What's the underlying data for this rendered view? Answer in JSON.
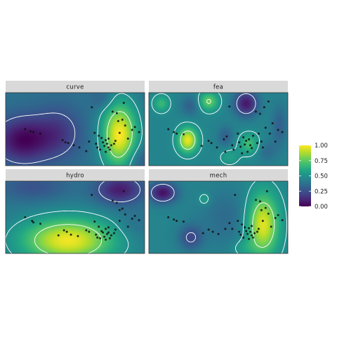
{
  "chart_data": {
    "type": "heatmap",
    "facets": [
      "curve",
      "fea",
      "hydro",
      "mech"
    ],
    "legend": {
      "ticks": [
        1.0,
        0.75,
        0.5,
        0.25,
        0.0
      ],
      "tick_labels": [
        "1.00",
        "0.75",
        "0.50",
        "0.25",
        "0.00"
      ],
      "range": [
        0,
        1
      ],
      "colormap": "viridis",
      "placement": "right"
    },
    "contour_levels": [
      0.25,
      0.5,
      0.75
    ],
    "xlim": [
      0,
      1
    ],
    "ylim": [
      0,
      1
    ],
    "grid": false,
    "surfaces": {
      "curve": {
        "base": 0.38,
        "bumps": [
          {
            "x": 0.82,
            "y": 0.42,
            "sx": 0.09,
            "sy": 0.32,
            "a": 0.62
          },
          {
            "x": 0.12,
            "y": 0.35,
            "sx": 0.14,
            "sy": 0.22,
            "a": -0.36
          },
          {
            "x": 0.38,
            "y": 0.45,
            "sx": 0.12,
            "sy": 0.25,
            "a": -0.2
          },
          {
            "x": 0.7,
            "y": 0.9,
            "sx": 0.06,
            "sy": 0.1,
            "a": -0.1
          },
          {
            "x": 0.96,
            "y": 0.08,
            "sx": 0.08,
            "sy": 0.14,
            "a": -0.12
          }
        ]
      },
      "fea": {
        "base": 0.45,
        "bumps": [
          {
            "x": 0.28,
            "y": 0.35,
            "sx": 0.05,
            "sy": 0.12,
            "a": 0.52
          },
          {
            "x": 0.43,
            "y": 0.88,
            "sx": 0.05,
            "sy": 0.09,
            "a": 0.32
          },
          {
            "x": 0.7,
            "y": 0.85,
            "sx": 0.06,
            "sy": 0.12,
            "a": -0.38
          },
          {
            "x": 0.72,
            "y": 0.3,
            "sx": 0.05,
            "sy": 0.1,
            "a": 0.24
          },
          {
            "x": 0.09,
            "y": 0.85,
            "sx": 0.04,
            "sy": 0.08,
            "a": 0.22
          },
          {
            "x": 0.55,
            "y": 0.4,
            "sx": 0.04,
            "sy": 0.1,
            "a": -0.14
          },
          {
            "x": 0.3,
            "y": 0.82,
            "sx": 0.05,
            "sy": 0.1,
            "a": -0.14
          },
          {
            "x": 0.94,
            "y": 0.55,
            "sx": 0.04,
            "sy": 0.2,
            "a": -0.14
          },
          {
            "x": 0.85,
            "y": 0.2,
            "sx": 0.05,
            "sy": 0.1,
            "a": -0.1
          },
          {
            "x": 0.58,
            "y": 0.12,
            "sx": 0.05,
            "sy": 0.08,
            "a": 0.12
          }
        ]
      },
      "hydro": {
        "base": 0.4,
        "bumps": [
          {
            "x": 0.45,
            "y": 0.18,
            "sx": 0.24,
            "sy": 0.22,
            "a": 0.58
          },
          {
            "x": 0.82,
            "y": 0.88,
            "sx": 0.12,
            "sy": 0.14,
            "a": -0.32
          },
          {
            "x": 0.2,
            "y": 0.92,
            "sx": 0.18,
            "sy": 0.14,
            "a": -0.14
          },
          {
            "x": 0.92,
            "y": 0.38,
            "sx": 0.1,
            "sy": 0.14,
            "a": -0.06
          }
        ]
      },
      "mech": {
        "base": 0.45,
        "bumps": [
          {
            "x": 0.82,
            "y": 0.4,
            "sx": 0.08,
            "sy": 0.3,
            "a": 0.52
          },
          {
            "x": 0.1,
            "y": 0.84,
            "sx": 0.07,
            "sy": 0.1,
            "a": -0.4
          },
          {
            "x": 0.3,
            "y": 0.22,
            "sx": 0.06,
            "sy": 0.12,
            "a": -0.22
          },
          {
            "x": 0.56,
            "y": 0.5,
            "sx": 0.14,
            "sy": 0.28,
            "a": -0.1
          },
          {
            "x": 0.4,
            "y": 0.75,
            "sx": 0.03,
            "sy": 0.06,
            "a": 0.14
          },
          {
            "x": 0.68,
            "y": 0.08,
            "sx": 0.06,
            "sy": 0.08,
            "a": 0.1
          }
        ]
      }
    },
    "points": {
      "curve": [
        [
          0.14,
          0.5
        ],
        [
          0.18,
          0.47
        ],
        [
          0.2,
          0.46
        ],
        [
          0.25,
          0.44
        ],
        [
          0.41,
          0.35
        ],
        [
          0.43,
          0.32
        ],
        [
          0.45,
          0.31
        ],
        [
          0.49,
          0.28
        ],
        [
          0.53,
          0.25
        ],
        [
          0.58,
          0.2
        ],
        [
          0.6,
          0.33
        ],
        [
          0.62,
          0.8
        ],
        [
          0.64,
          0.45
        ],
        [
          0.65,
          0.3
        ],
        [
          0.66,
          0.25
        ],
        [
          0.67,
          0.41
        ],
        [
          0.68,
          0.22
        ],
        [
          0.69,
          0.38
        ],
        [
          0.7,
          0.32
        ],
        [
          0.71,
          0.27
        ],
        [
          0.72,
          0.35
        ],
        [
          0.72,
          0.19
        ],
        [
          0.73,
          0.3
        ],
        [
          0.74,
          0.25
        ],
        [
          0.74,
          0.37
        ],
        [
          0.75,
          0.22
        ],
        [
          0.76,
          0.28
        ],
        [
          0.77,
          0.74
        ],
        [
          0.78,
          0.3
        ],
        [
          0.79,
          0.34
        ],
        [
          0.8,
          0.72
        ],
        [
          0.81,
          0.61
        ],
        [
          0.82,
          0.45
        ],
        [
          0.84,
          0.63
        ],
        [
          0.85,
          0.86
        ],
        [
          0.86,
          0.55
        ],
        [
          0.88,
          0.37
        ],
        [
          0.91,
          0.49
        ],
        [
          0.93,
          0.53
        ],
        [
          0.96,
          0.46
        ]
      ],
      "fea": [
        [
          0.14,
          0.5
        ],
        [
          0.18,
          0.46
        ],
        [
          0.2,
          0.44
        ],
        [
          0.25,
          0.43
        ],
        [
          0.38,
          0.27
        ],
        [
          0.43,
          0.34
        ],
        [
          0.45,
          0.31
        ],
        [
          0.49,
          0.25
        ],
        [
          0.54,
          0.36
        ],
        [
          0.55,
          0.19
        ],
        [
          0.56,
          0.4
        ],
        [
          0.58,
          0.81
        ],
        [
          0.6,
          0.28
        ],
        [
          0.61,
          0.22
        ],
        [
          0.64,
          0.44
        ],
        [
          0.65,
          0.32
        ],
        [
          0.66,
          0.26
        ],
        [
          0.67,
          0.17
        ],
        [
          0.68,
          0.39
        ],
        [
          0.69,
          0.29
        ],
        [
          0.7,
          0.34
        ],
        [
          0.71,
          0.19
        ],
        [
          0.72,
          0.36
        ],
        [
          0.73,
          0.28
        ],
        [
          0.74,
          0.24
        ],
        [
          0.75,
          0.41
        ],
        [
          0.77,
          0.74
        ],
        [
          0.78,
          0.31
        ],
        [
          0.79,
          0.44
        ],
        [
          0.8,
          0.71
        ],
        [
          0.81,
          0.33
        ],
        [
          0.82,
          0.25
        ],
        [
          0.83,
          0.8
        ],
        [
          0.84,
          0.52
        ],
        [
          0.86,
          0.88
        ],
        [
          0.87,
          0.44
        ],
        [
          0.89,
          0.58
        ],
        [
          0.91,
          0.33
        ],
        [
          0.93,
          0.49
        ],
        [
          0.96,
          0.46
        ]
      ],
      "hydro": [
        [
          0.14,
          0.5
        ],
        [
          0.19,
          0.45
        ],
        [
          0.2,
          0.43
        ],
        [
          0.25,
          0.41
        ],
        [
          0.38,
          0.25
        ],
        [
          0.42,
          0.32
        ],
        [
          0.44,
          0.3
        ],
        [
          0.47,
          0.26
        ],
        [
          0.52,
          0.24
        ],
        [
          0.58,
          0.32
        ],
        [
          0.6,
          0.3
        ],
        [
          0.62,
          0.81
        ],
        [
          0.64,
          0.44
        ],
        [
          0.65,
          0.26
        ],
        [
          0.66,
          0.22
        ],
        [
          0.67,
          0.37
        ],
        [
          0.68,
          0.21
        ],
        [
          0.69,
          0.31
        ],
        [
          0.7,
          0.29
        ],
        [
          0.71,
          0.23
        ],
        [
          0.72,
          0.34
        ],
        [
          0.72,
          0.19
        ],
        [
          0.73,
          0.27
        ],
        [
          0.74,
          0.29
        ],
        [
          0.74,
          0.36
        ],
        [
          0.75,
          0.21
        ],
        [
          0.76,
          0.25
        ],
        [
          0.77,
          0.73
        ],
        [
          0.78,
          0.28
        ],
        [
          0.79,
          0.33
        ],
        [
          0.8,
          0.7
        ],
        [
          0.82,
          0.6
        ],
        [
          0.82,
          0.45
        ],
        [
          0.84,
          0.62
        ],
        [
          0.85,
          0.86
        ],
        [
          0.86,
          0.54
        ],
        [
          0.88,
          0.37
        ],
        [
          0.91,
          0.48
        ],
        [
          0.93,
          0.52
        ],
        [
          0.96,
          0.46
        ]
      ],
      "mech": [
        [
          0.14,
          0.5
        ],
        [
          0.18,
          0.47
        ],
        [
          0.2,
          0.45
        ],
        [
          0.25,
          0.44
        ],
        [
          0.39,
          0.28
        ],
        [
          0.43,
          0.33
        ],
        [
          0.46,
          0.3
        ],
        [
          0.5,
          0.27
        ],
        [
          0.55,
          0.34
        ],
        [
          0.58,
          0.42
        ],
        [
          0.6,
          0.34
        ],
        [
          0.62,
          0.81
        ],
        [
          0.64,
          0.45
        ],
        [
          0.65,
          0.3
        ],
        [
          0.66,
          0.26
        ],
        [
          0.67,
          0.4
        ],
        [
          0.68,
          0.22
        ],
        [
          0.69,
          0.36
        ],
        [
          0.7,
          0.31
        ],
        [
          0.71,
          0.27
        ],
        [
          0.72,
          0.35
        ],
        [
          0.72,
          0.2
        ],
        [
          0.73,
          0.3
        ],
        [
          0.74,
          0.25
        ],
        [
          0.74,
          0.38
        ],
        [
          0.75,
          0.22
        ],
        [
          0.76,
          0.28
        ],
        [
          0.77,
          0.74
        ],
        [
          0.78,
          0.3
        ],
        [
          0.79,
          0.34
        ],
        [
          0.8,
          0.72
        ],
        [
          0.81,
          0.6
        ],
        [
          0.82,
          0.45
        ],
        [
          0.84,
          0.63
        ],
        [
          0.85,
          0.86
        ],
        [
          0.86,
          0.55
        ],
        [
          0.88,
          0.37
        ],
        [
          0.91,
          0.49
        ],
        [
          0.93,
          0.53
        ],
        [
          0.96,
          0.46
        ]
      ]
    },
    "title": "",
    "xlabel": "",
    "ylabel": ""
  }
}
